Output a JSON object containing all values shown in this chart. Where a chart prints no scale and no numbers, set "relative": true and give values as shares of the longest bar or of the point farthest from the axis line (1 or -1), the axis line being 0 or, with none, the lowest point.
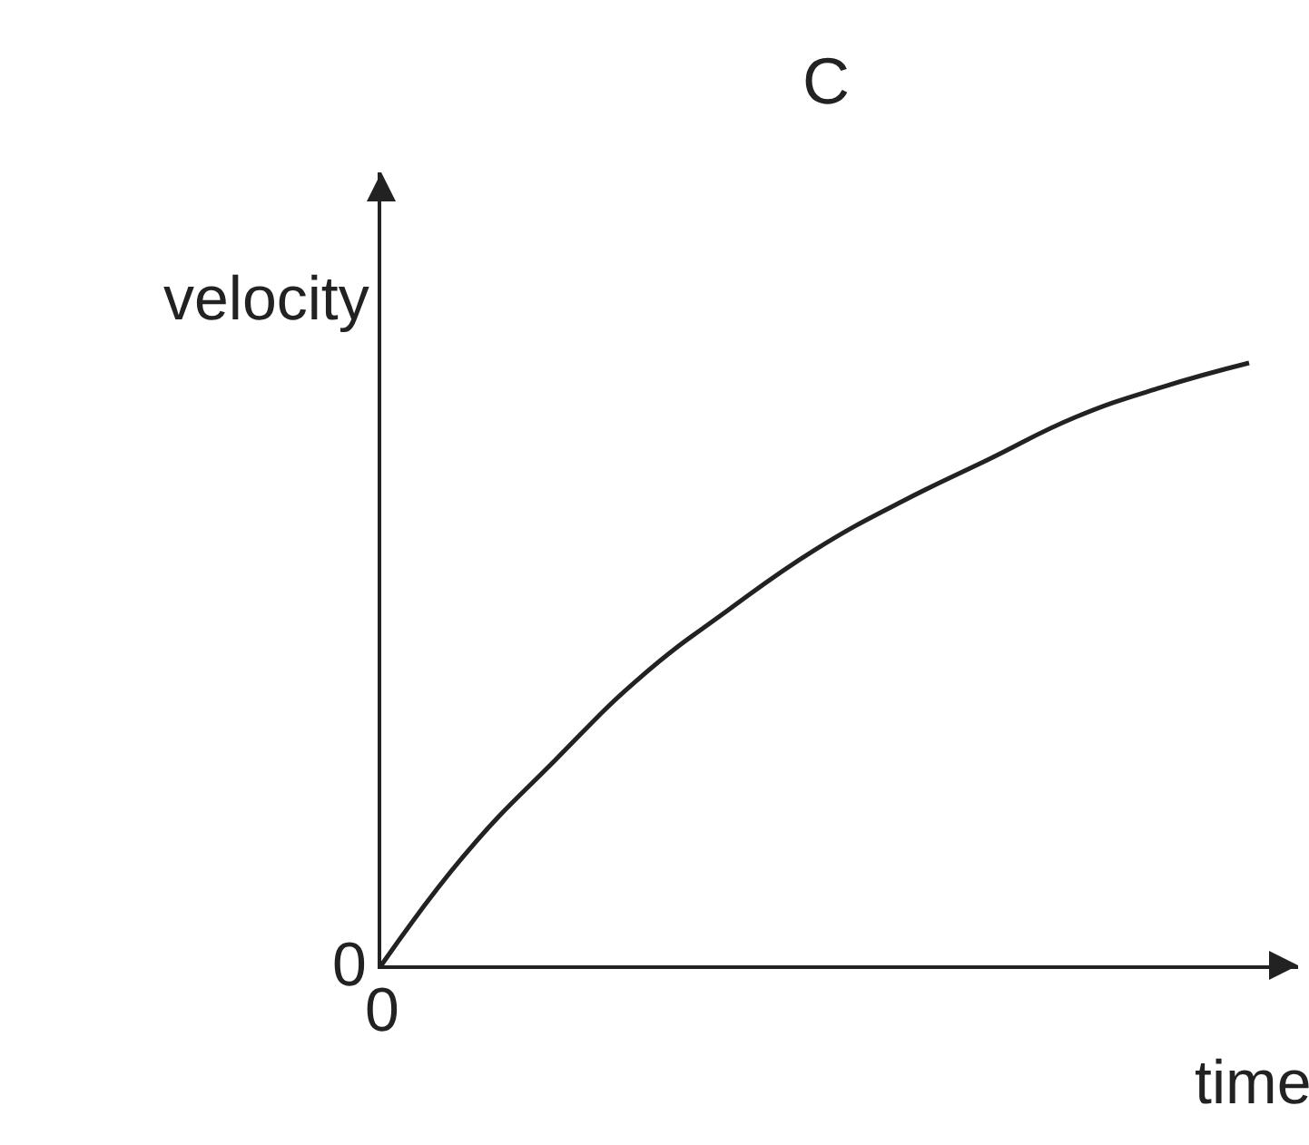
{
  "chart_data": {
    "type": "line",
    "title": "C",
    "xlabel": "time",
    "ylabel": "velocity",
    "relative": true,
    "categories": [
      null,
      null,
      null,
      null,
      null,
      null,
      null,
      null,
      null,
      null,
      null
    ],
    "series": [
      {
        "color": "#222222",
        "values": [
          0,
          0.19,
          0.34,
          0.48,
          0.59,
          0.69,
          0.77,
          0.84,
          0.91,
          0.96,
          1.0
        ]
      }
    ],
    "annotations": [
      "0",
      "0"
    ],
    "marker": "none",
    "line_style": "solid"
  }
}
